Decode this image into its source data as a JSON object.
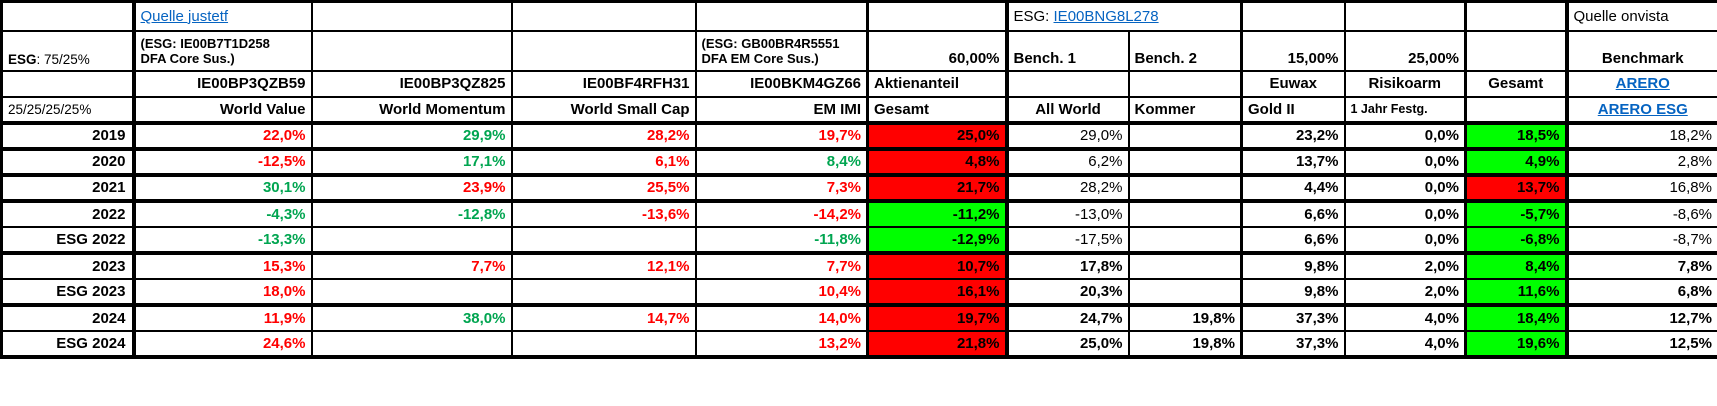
{
  "colors": {
    "red_text": "#FF0000",
    "green_text": "#00A550",
    "red_bg": "#FF0000",
    "green_bg": "#00FF00",
    "link_blue": "#0563C1"
  },
  "table": {
    "header": {
      "r1": {
        "quelle_justetf": "Quelle justetf",
        "esg_prefix": "ESG: ",
        "esg_isin_link": "IE00BNG8L278",
        "quelle_onvista": "Quelle onvista"
      },
      "r2": {
        "esg_bold": "ESG",
        "esg_rest": ": 75/25%",
        "note_world_l1": "(ESG: IE00B7T1D258",
        "note_world_l2": "DFA Core Sus.)",
        "note_em_l1": "(ESG: GB00BR4R5551",
        "note_em_l2": "DFA EM Core Sus.)",
        "aktienanteil_pct": "60,00%",
        "bench1": "Bench. 1",
        "bench2": "Bench. 2",
        "gold_pct": "15,00%",
        "risikoarm_pct": "25,00%",
        "benchmark": "Benchmark"
      },
      "r3": {
        "isin_value": "IE00BP3QZB59",
        "isin_momentum": "IE00BP3QZ825",
        "isin_smallcap": "IE00BF4RFH31",
        "isin_em": "IE00BKM4GZ66",
        "aktienanteil": "Aktienanteil",
        "euwax": "Euwax",
        "risikoarm": "Risikoarm",
        "gesamt": "Gesamt",
        "arero_link": "ARERO"
      },
      "r4": {
        "weights": "25/25/25/25%",
        "world_value": "World Value",
        "world_momentum": "World Momentum",
        "world_small_cap": "World Small Cap",
        "em_imi": "EM IMI",
        "gesamt": "Gesamt",
        "all_world": "All World",
        "kommer": "Kommer",
        "gold_ii": "Gold II",
        "festgeld": "1 Jahr Festg.",
        "arero_esg_link": "ARERO ESG"
      }
    },
    "rows": [
      {
        "label": "2019",
        "group_end": true,
        "cells": [
          {
            "v": "22,0%",
            "s": "r"
          },
          {
            "v": "29,9%",
            "s": "g"
          },
          {
            "v": "28,2%",
            "s": "r"
          },
          {
            "v": "19,7%",
            "s": "r"
          },
          {
            "v": "25,0%",
            "s": "R"
          },
          {
            "v": "29,0%",
            "s": "n"
          },
          {
            "v": ""
          },
          {
            "v": "23,2%",
            "s": "b"
          },
          {
            "v": "0,0%",
            "s": "b"
          },
          {
            "v": "18,5%",
            "s": "G"
          },
          {
            "v": "18,2%",
            "s": "n"
          }
        ]
      },
      {
        "label": "2020",
        "group_end": true,
        "cells": [
          {
            "v": "-12,5%",
            "s": "r"
          },
          {
            "v": "17,1%",
            "s": "g"
          },
          {
            "v": "6,1%",
            "s": "r"
          },
          {
            "v": "8,4%",
            "s": "g"
          },
          {
            "v": "4,8%",
            "s": "R"
          },
          {
            "v": "6,2%",
            "s": "n"
          },
          {
            "v": ""
          },
          {
            "v": "13,7%",
            "s": "b"
          },
          {
            "v": "0,0%",
            "s": "b"
          },
          {
            "v": "4,9%",
            "s": "G"
          },
          {
            "v": "2,8%",
            "s": "n"
          }
        ]
      },
      {
        "label": "2021",
        "group_end": true,
        "cells": [
          {
            "v": "30,1%",
            "s": "g"
          },
          {
            "v": "23,9%",
            "s": "r"
          },
          {
            "v": "25,5%",
            "s": "r"
          },
          {
            "v": "7,3%",
            "s": "r"
          },
          {
            "v": "21,7%",
            "s": "R"
          },
          {
            "v": "28,2%",
            "s": "n"
          },
          {
            "v": ""
          },
          {
            "v": "4,4%",
            "s": "b"
          },
          {
            "v": "0,0%",
            "s": "b"
          },
          {
            "v": "13,7%",
            "s": "R"
          },
          {
            "v": "16,8%",
            "s": "n"
          }
        ]
      },
      {
        "label": "2022",
        "group_end": false,
        "cells": [
          {
            "v": "-4,3%",
            "s": "g"
          },
          {
            "v": "-12,8%",
            "s": "g"
          },
          {
            "v": "-13,6%",
            "s": "r"
          },
          {
            "v": "-14,2%",
            "s": "r"
          },
          {
            "v": "-11,2%",
            "s": "G"
          },
          {
            "v": "-13,0%",
            "s": "n"
          },
          {
            "v": ""
          },
          {
            "v": "6,6%",
            "s": "b"
          },
          {
            "v": "0,0%",
            "s": "b"
          },
          {
            "v": "-5,7%",
            "s": "G"
          },
          {
            "v": "-8,6%",
            "s": "n"
          }
        ]
      },
      {
        "label": "ESG 2022",
        "group_end": true,
        "cells": [
          {
            "v": "-13,3%",
            "s": "g"
          },
          {
            "v": ""
          },
          {
            "v": ""
          },
          {
            "v": "-11,8%",
            "s": "g"
          },
          {
            "v": "-12,9%",
            "s": "G"
          },
          {
            "v": "-17,5%",
            "s": "n"
          },
          {
            "v": ""
          },
          {
            "v": "6,6%",
            "s": "b"
          },
          {
            "v": "0,0%",
            "s": "b"
          },
          {
            "v": "-6,8%",
            "s": "G"
          },
          {
            "v": "-8,7%",
            "s": "n"
          }
        ]
      },
      {
        "label": "2023",
        "group_end": false,
        "cells": [
          {
            "v": "15,3%",
            "s": "r"
          },
          {
            "v": "7,7%",
            "s": "r"
          },
          {
            "v": "12,1%",
            "s": "r"
          },
          {
            "v": "7,7%",
            "s": "r"
          },
          {
            "v": "10,7%",
            "s": "R"
          },
          {
            "v": "17,8%",
            "s": "b"
          },
          {
            "v": ""
          },
          {
            "v": "9,8%",
            "s": "b"
          },
          {
            "v": "2,0%",
            "s": "b"
          },
          {
            "v": "8,4%",
            "s": "G"
          },
          {
            "v": "7,8%",
            "s": "b"
          }
        ]
      },
      {
        "label": "ESG 2023",
        "group_end": true,
        "cells": [
          {
            "v": "18,0%",
            "s": "r"
          },
          {
            "v": ""
          },
          {
            "v": ""
          },
          {
            "v": "10,4%",
            "s": "r"
          },
          {
            "v": "16,1%",
            "s": "R"
          },
          {
            "v": "20,3%",
            "s": "b"
          },
          {
            "v": ""
          },
          {
            "v": "9,8%",
            "s": "b"
          },
          {
            "v": "2,0%",
            "s": "b"
          },
          {
            "v": "11,6%",
            "s": "G"
          },
          {
            "v": "6,8%",
            "s": "b"
          }
        ]
      },
      {
        "label": "2024",
        "group_end": false,
        "cells": [
          {
            "v": "11,9%",
            "s": "r"
          },
          {
            "v": "38,0%",
            "s": "g"
          },
          {
            "v": "14,7%",
            "s": "r"
          },
          {
            "v": "14,0%",
            "s": "r"
          },
          {
            "v": "19,7%",
            "s": "R"
          },
          {
            "v": "24,7%",
            "s": "b"
          },
          {
            "v": "19,8%",
            "s": "b"
          },
          {
            "v": "37,3%",
            "s": "b"
          },
          {
            "v": "4,0%",
            "s": "b"
          },
          {
            "v": "18,4%",
            "s": "G"
          },
          {
            "v": "12,7%",
            "s": "b"
          }
        ]
      },
      {
        "label": "ESG 2024",
        "group_end": true,
        "cells": [
          {
            "v": "24,6%",
            "s": "r"
          },
          {
            "v": ""
          },
          {
            "v": ""
          },
          {
            "v": "13,2%",
            "s": "r"
          },
          {
            "v": "21,8%",
            "s": "R"
          },
          {
            "v": "25,0%",
            "s": "b"
          },
          {
            "v": "19,8%",
            "s": "b"
          },
          {
            "v": "37,3%",
            "s": "b"
          },
          {
            "v": "4,0%",
            "s": "b"
          },
          {
            "v": "19,6%",
            "s": "G"
          },
          {
            "v": "12,5%",
            "s": "b"
          }
        ]
      }
    ]
  }
}
